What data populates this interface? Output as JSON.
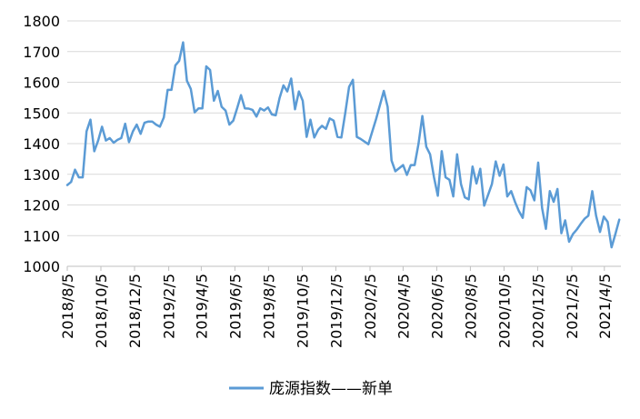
{
  "chart_data": {
    "type": "line",
    "title": "",
    "xlabel": "",
    "ylabel": "",
    "ylim": [
      1000,
      1800
    ],
    "yticks": [
      1000,
      1100,
      1200,
      1300,
      1400,
      1500,
      1600,
      1700,
      1800
    ],
    "x_tick_labels": [
      "2018/8/5",
      "2018/10/5",
      "2018/12/5",
      "2019/2/5",
      "2019/4/5",
      "2019/6/5",
      "2019/8/5",
      "2019/10/5",
      "2019/12/5",
      "2020/2/5",
      "2020/4/5",
      "2020/6/5",
      "2020/8/5",
      "2020/10/5",
      "2020/12/5",
      "2021/2/5",
      "2021/4/5"
    ],
    "grid": "horizontal",
    "legend_position": "bottom",
    "colors": {
      "series": "#5b9bd5",
      "grid": "#d9d9d9",
      "axis": "#bfbfbf"
    },
    "series": [
      {
        "name": "庞源指数——新单",
        "points": [
          [
            "2018-08-05",
            1265
          ],
          [
            "2018-08-12",
            1275
          ],
          [
            "2018-08-19",
            1315
          ],
          [
            "2018-08-26",
            1290
          ],
          [
            "2018-09-02",
            1290
          ],
          [
            "2018-09-09",
            1440
          ],
          [
            "2018-09-16",
            1478
          ],
          [
            "2018-09-23",
            1375
          ],
          [
            "2018-09-30",
            1410
          ],
          [
            "2018-10-07",
            1455
          ],
          [
            "2018-10-14",
            1410
          ],
          [
            "2018-10-21",
            1418
          ],
          [
            "2018-10-28",
            1403
          ],
          [
            "2018-11-04",
            1412
          ],
          [
            "2018-11-11",
            1418
          ],
          [
            "2018-11-18",
            1465
          ],
          [
            "2018-11-25",
            1405
          ],
          [
            "2018-12-02",
            1440
          ],
          [
            "2018-12-09",
            1462
          ],
          [
            "2018-12-16",
            1432
          ],
          [
            "2018-12-23",
            1468
          ],
          [
            "2018-12-30",
            1472
          ],
          [
            "2019-01-06",
            1472
          ],
          [
            "2019-01-13",
            1462
          ],
          [
            "2019-01-20",
            1455
          ],
          [
            "2019-01-27",
            1485
          ],
          [
            "2019-02-03",
            1575
          ],
          [
            "2019-02-10",
            1575
          ],
          [
            "2019-02-17",
            1655
          ],
          [
            "2019-02-24",
            1670
          ],
          [
            "2019-03-03",
            1730
          ],
          [
            "2019-03-10",
            1605
          ],
          [
            "2019-03-17",
            1578
          ],
          [
            "2019-03-24",
            1502
          ],
          [
            "2019-03-31",
            1515
          ],
          [
            "2019-04-07",
            1515
          ],
          [
            "2019-04-14",
            1652
          ],
          [
            "2019-04-21",
            1640
          ],
          [
            "2019-04-28",
            1540
          ],
          [
            "2019-05-05",
            1572
          ],
          [
            "2019-05-12",
            1520
          ],
          [
            "2019-05-19",
            1508
          ],
          [
            "2019-05-26",
            1462
          ],
          [
            "2019-06-02",
            1475
          ],
          [
            "2019-06-09",
            1515
          ],
          [
            "2019-06-16",
            1558
          ],
          [
            "2019-06-23",
            1515
          ],
          [
            "2019-06-30",
            1514
          ],
          [
            "2019-07-07",
            1510
          ],
          [
            "2019-07-14",
            1488
          ],
          [
            "2019-07-21",
            1515
          ],
          [
            "2019-07-28",
            1508
          ],
          [
            "2019-08-04",
            1518
          ],
          [
            "2019-08-11",
            1495
          ],
          [
            "2019-08-18",
            1492
          ],
          [
            "2019-08-25",
            1548
          ],
          [
            "2019-09-01",
            1590
          ],
          [
            "2019-09-08",
            1570
          ],
          [
            "2019-09-15",
            1612
          ],
          [
            "2019-09-22",
            1512
          ],
          [
            "2019-09-29",
            1570
          ],
          [
            "2019-10-06",
            1540
          ],
          [
            "2019-10-13",
            1422
          ],
          [
            "2019-10-20",
            1478
          ],
          [
            "2019-10-27",
            1420
          ],
          [
            "2019-11-03",
            1445
          ],
          [
            "2019-11-10",
            1458
          ],
          [
            "2019-11-17",
            1448
          ],
          [
            "2019-11-24",
            1482
          ],
          [
            "2019-12-01",
            1475
          ],
          [
            "2019-12-08",
            1422
          ],
          [
            "2019-12-15",
            1420
          ],
          [
            "2019-12-22",
            1498
          ],
          [
            "2019-12-29",
            1585
          ],
          [
            "2020-01-05",
            1608
          ],
          [
            "2020-01-12",
            1422
          ],
          [
            "2020-01-19",
            1415
          ],
          [
            "2020-02-02",
            1398
          ],
          [
            "2020-02-16",
            1480
          ],
          [
            "2020-03-01",
            1572
          ],
          [
            "2020-03-08",
            1520
          ],
          [
            "2020-03-15",
            1345
          ],
          [
            "2020-03-22",
            1310
          ],
          [
            "2020-03-29",
            1320
          ],
          [
            "2020-04-05",
            1330
          ],
          [
            "2020-04-12",
            1298
          ],
          [
            "2020-04-19",
            1330
          ],
          [
            "2020-04-26",
            1330
          ],
          [
            "2020-05-03",
            1400
          ],
          [
            "2020-05-10",
            1490
          ],
          [
            "2020-05-17",
            1390
          ],
          [
            "2020-05-24",
            1365
          ],
          [
            "2020-05-31",
            1290
          ],
          [
            "2020-06-07",
            1230
          ],
          [
            "2020-06-14",
            1375
          ],
          [
            "2020-06-21",
            1290
          ],
          [
            "2020-06-28",
            1282
          ],
          [
            "2020-07-05",
            1228
          ],
          [
            "2020-07-12",
            1365
          ],
          [
            "2020-07-19",
            1268
          ],
          [
            "2020-07-26",
            1225
          ],
          [
            "2020-08-02",
            1218
          ],
          [
            "2020-08-09",
            1325
          ],
          [
            "2020-08-16",
            1270
          ],
          [
            "2020-08-23",
            1318
          ],
          [
            "2020-08-30",
            1198
          ],
          [
            "2020-09-06",
            1232
          ],
          [
            "2020-09-13",
            1268
          ],
          [
            "2020-09-20",
            1342
          ],
          [
            "2020-09-27",
            1295
          ],
          [
            "2020-10-04",
            1332
          ],
          [
            "2020-10-11",
            1228
          ],
          [
            "2020-10-18",
            1245
          ],
          [
            "2020-10-25",
            1210
          ],
          [
            "2020-11-01",
            1180
          ],
          [
            "2020-11-08",
            1158
          ],
          [
            "2020-11-15",
            1258
          ],
          [
            "2020-11-22",
            1248
          ],
          [
            "2020-11-29",
            1215
          ],
          [
            "2020-12-06",
            1338
          ],
          [
            "2020-12-13",
            1190
          ],
          [
            "2020-12-20",
            1122
          ],
          [
            "2020-12-27",
            1245
          ],
          [
            "2021-01-03",
            1210
          ],
          [
            "2021-01-10",
            1252
          ],
          [
            "2021-01-17",
            1108
          ],
          [
            "2021-01-24",
            1150
          ],
          [
            "2021-01-31",
            1080
          ],
          [
            "2021-02-07",
            1105
          ],
          [
            "2021-02-14",
            1120
          ],
          [
            "2021-02-21",
            1138
          ],
          [
            "2021-02-28",
            1155
          ],
          [
            "2021-03-07",
            1165
          ],
          [
            "2021-03-14",
            1245
          ],
          [
            "2021-03-21",
            1165
          ],
          [
            "2021-03-28",
            1112
          ],
          [
            "2021-04-04",
            1162
          ],
          [
            "2021-04-11",
            1145
          ],
          [
            "2021-04-18",
            1062
          ],
          [
            "2021-04-25",
            1105
          ],
          [
            "2021-05-02",
            1152
          ]
        ]
      }
    ]
  }
}
